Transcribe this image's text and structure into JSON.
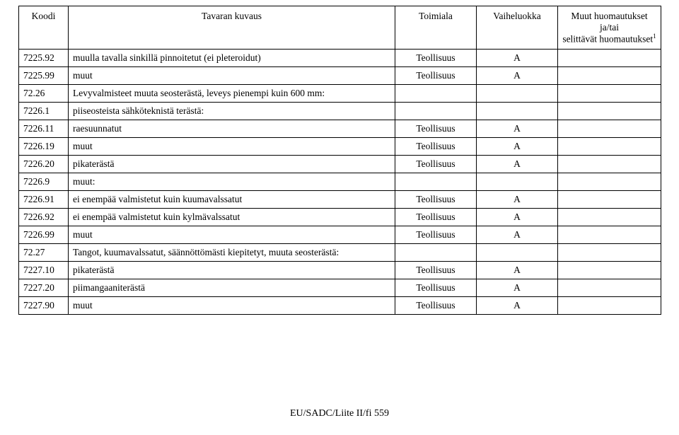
{
  "table": {
    "headers": {
      "koodi": "Koodi",
      "kuvaus": "Tavaran kuvaus",
      "toimiala": "Toimiala",
      "vaiheluokka": "Vaiheluokka",
      "muut_line1": "Muut huomautukset ja/tai",
      "muut_line2": "selittävät huomautukset",
      "muut_sup": "1"
    },
    "rows": [
      {
        "koodi": "7225.92",
        "kuvaus": "muulla tavalla sinkillä pinnoitetut (ei pleteroidut)",
        "toimiala": "Teollisuus",
        "vaiheluokka": "A",
        "muut": ""
      },
      {
        "koodi": "7225.99",
        "kuvaus": "muut",
        "toimiala": "Teollisuus",
        "vaiheluokka": "A",
        "muut": ""
      },
      {
        "koodi": "72.26",
        "kuvaus": "Levyvalmisteet muuta seosterästä, leveys pienempi kuin 600 mm:",
        "toimiala": "",
        "vaiheluokka": "",
        "muut": ""
      },
      {
        "koodi": "7226.1",
        "kuvaus": "piiseosteista sähköteknistä terästä:",
        "toimiala": "",
        "vaiheluokka": "",
        "muut": ""
      },
      {
        "koodi": "7226.11",
        "kuvaus": "raesuunnatut",
        "toimiala": "Teollisuus",
        "vaiheluokka": "A",
        "muut": ""
      },
      {
        "koodi": "7226.19",
        "kuvaus": "muut",
        "toimiala": "Teollisuus",
        "vaiheluokka": "A",
        "muut": ""
      },
      {
        "koodi": "7226.20",
        "kuvaus": "pikaterästä",
        "toimiala": "Teollisuus",
        "vaiheluokka": "A",
        "muut": ""
      },
      {
        "koodi": "7226.9",
        "kuvaus": "muut:",
        "toimiala": "",
        "vaiheluokka": "",
        "muut": ""
      },
      {
        "koodi": "7226.91",
        "kuvaus": "ei enempää valmistetut kuin kuumavalssatut",
        "toimiala": "Teollisuus",
        "vaiheluokka": "A",
        "muut": ""
      },
      {
        "koodi": "7226.92",
        "kuvaus": "ei enempää valmistetut kuin kylmävalssatut",
        "toimiala": "Teollisuus",
        "vaiheluokka": "A",
        "muut": ""
      },
      {
        "koodi": "7226.99",
        "kuvaus": "muut",
        "toimiala": "Teollisuus",
        "vaiheluokka": "A",
        "muut": ""
      },
      {
        "koodi": "72.27",
        "kuvaus": "Tangot, kuumavalssatut, säännöttömästi kiepitetyt, muuta seosterästä:",
        "toimiala": "",
        "vaiheluokka": "",
        "muut": ""
      },
      {
        "koodi": "7227.10",
        "kuvaus": "pikaterästä",
        "toimiala": "Teollisuus",
        "vaiheluokka": "A",
        "muut": ""
      },
      {
        "koodi": "7227.20",
        "kuvaus": "piimangaaniterästä",
        "toimiala": "Teollisuus",
        "vaiheluokka": "A",
        "muut": ""
      },
      {
        "koodi": "7227.90",
        "kuvaus": "muut",
        "toimiala": "Teollisuus",
        "vaiheluokka": "A",
        "muut": ""
      }
    ]
  },
  "footer": "EU/SADC/Liite II/fi 559"
}
